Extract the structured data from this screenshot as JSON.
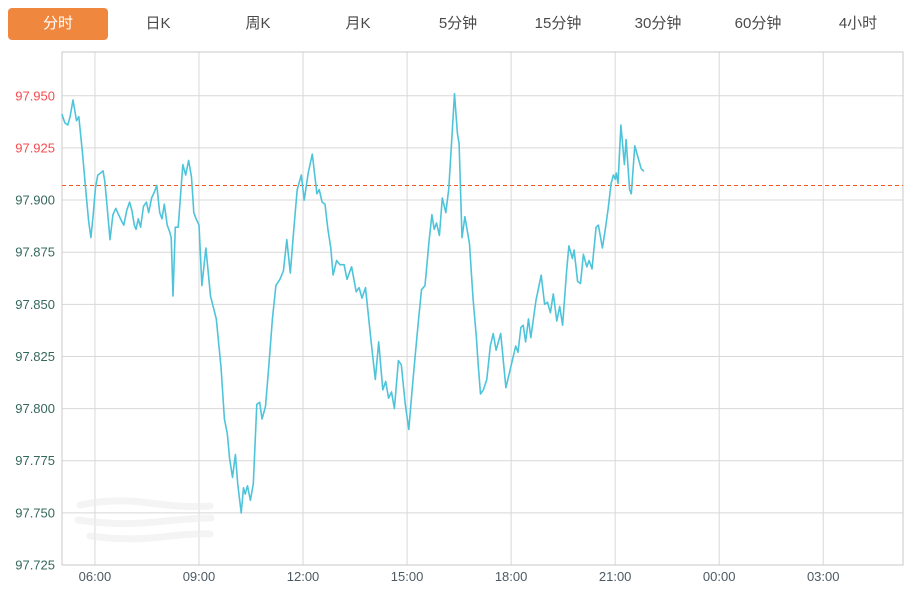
{
  "tab_bar": {
    "items": [
      {
        "key": "minute",
        "label": "分时",
        "active": true
      },
      {
        "key": "daily-k",
        "label": "日K",
        "active": false
      },
      {
        "key": "weekly-k",
        "label": "周K",
        "active": false
      },
      {
        "key": "monthly-k",
        "label": "月K",
        "active": false
      },
      {
        "key": "5min",
        "label": "5分钟",
        "active": false
      },
      {
        "key": "15min",
        "label": "15分钟",
        "active": false
      },
      {
        "key": "30min",
        "label": "30分钟",
        "active": false
      },
      {
        "key": "60min",
        "label": "60分钟",
        "active": false
      },
      {
        "key": "4hour",
        "label": "4小时",
        "active": false
      }
    ]
  },
  "colors": {
    "accent_orange": "#f0873f",
    "line_cyan": "#4ec4da",
    "reference_orange": "#f4581f",
    "tick_red": "#fb4a4d",
    "tick_green": "#35685c",
    "x_label": "#4d5a63",
    "grid": "#d8d8d8",
    "border": "#c9c9c9",
    "tab_text": "#4a4a4a"
  },
  "chart_data": {
    "type": "line",
    "title": "",
    "legend": false,
    "grid": true,
    "x_tick_labels": [
      "06:00",
      "09:00",
      "12:00",
      "15:00",
      "18:00",
      "21:00",
      "00:00",
      "03:00"
    ],
    "x_tick_hours": [
      6,
      9,
      12,
      15,
      18,
      21,
      24,
      27
    ],
    "y_ticks": [
      97.95,
      97.925,
      97.9,
      97.875,
      97.85,
      97.825,
      97.8,
      97.775,
      97.75,
      97.725
    ],
    "ylim": [
      97.725,
      97.971
    ],
    "xlim_hours": [
      5.05,
      29.3
    ],
    "reference_line": {
      "value": 97.907,
      "style": "dashed"
    },
    "series": [
      {
        "name": "分时",
        "points": [
          [
            "05:03",
            97.941
          ],
          [
            "05:08",
            97.937
          ],
          [
            "05:13",
            97.936
          ],
          [
            "05:17",
            97.94
          ],
          [
            "05:22",
            97.948
          ],
          [
            "05:28",
            97.938
          ],
          [
            "05:32",
            97.94
          ],
          [
            "05:38",
            97.924
          ],
          [
            "05:44",
            97.905
          ],
          [
            "05:49",
            97.89
          ],
          [
            "05:53",
            97.882
          ],
          [
            "05:57",
            97.893
          ],
          [
            "06:01",
            97.906
          ],
          [
            "06:05",
            97.912
          ],
          [
            "06:10",
            97.913
          ],
          [
            "06:14",
            97.914
          ],
          [
            "06:17",
            97.909
          ],
          [
            "06:21",
            97.897
          ],
          [
            "06:26",
            97.881
          ],
          [
            "06:31",
            97.893
          ],
          [
            "06:36",
            97.896
          ],
          [
            "06:41",
            97.893
          ],
          [
            "06:46",
            97.89
          ],
          [
            "06:50",
            97.888
          ],
          [
            "06:55",
            97.895
          ],
          [
            "07:00",
            97.899
          ],
          [
            "07:04",
            97.895
          ],
          [
            "07:08",
            97.888
          ],
          [
            "07:11",
            97.886
          ],
          [
            "07:15",
            97.891
          ],
          [
            "07:19",
            97.887
          ],
          [
            "07:24",
            97.897
          ],
          [
            "07:29",
            97.899
          ],
          [
            "07:33",
            97.894
          ],
          [
            "07:38",
            97.901
          ],
          [
            "07:43",
            97.904
          ],
          [
            "07:47",
            97.907
          ],
          [
            "07:52",
            97.894
          ],
          [
            "07:56",
            97.891
          ],
          [
            "08:00",
            97.898
          ],
          [
            "08:05",
            97.888
          ],
          [
            "08:09",
            97.885
          ],
          [
            "08:12",
            97.882
          ],
          [
            "08:15",
            97.854
          ],
          [
            "08:19",
            97.887
          ],
          [
            "08:24",
            97.887
          ],
          [
            "08:28",
            97.902
          ],
          [
            "08:32",
            97.917
          ],
          [
            "08:37",
            97.912
          ],
          [
            "08:42",
            97.919
          ],
          [
            "08:47",
            97.911
          ],
          [
            "08:51",
            97.894
          ],
          [
            "08:55",
            97.891
          ],
          [
            "09:00",
            97.888
          ],
          [
            "09:05",
            97.859
          ],
          [
            "09:12",
            97.877
          ],
          [
            "09:20",
            97.854
          ],
          [
            "09:30",
            97.843
          ],
          [
            "09:38",
            97.82
          ],
          [
            "09:44",
            97.795
          ],
          [
            "09:49",
            97.788
          ],
          [
            "09:53",
            97.776
          ],
          [
            "09:58",
            97.767
          ],
          [
            "10:03",
            97.778
          ],
          [
            "10:07",
            97.764
          ],
          [
            "10:13",
            97.75
          ],
          [
            "10:17",
            97.762
          ],
          [
            "10:20",
            97.759
          ],
          [
            "10:24",
            97.763
          ],
          [
            "10:29",
            97.756
          ],
          [
            "10:34",
            97.764
          ],
          [
            "10:40",
            97.802
          ],
          [
            "10:45",
            97.803
          ],
          [
            "10:49",
            97.795
          ],
          [
            "10:55",
            97.801
          ],
          [
            "11:01",
            97.821
          ],
          [
            "11:07",
            97.843
          ],
          [
            "11:13",
            97.859
          ],
          [
            "11:20",
            97.862
          ],
          [
            "11:26",
            97.866
          ],
          [
            "11:32",
            97.881
          ],
          [
            "11:38",
            97.865
          ],
          [
            "11:44",
            97.886
          ],
          [
            "11:50",
            97.905
          ],
          [
            "11:57",
            97.912
          ],
          [
            "12:02",
            97.9
          ],
          [
            "12:09",
            97.913
          ],
          [
            "12:16",
            97.922
          ],
          [
            "12:24",
            97.903
          ],
          [
            "12:28",
            97.905
          ],
          [
            "12:33",
            97.899
          ],
          [
            "12:38",
            97.898
          ],
          [
            "12:43",
            97.886
          ],
          [
            "12:48",
            97.877
          ],
          [
            "12:52",
            97.864
          ],
          [
            "12:58",
            97.871
          ],
          [
            "13:04",
            97.869
          ],
          [
            "13:11",
            97.869
          ],
          [
            "13:16",
            97.862
          ],
          [
            "13:24",
            97.868
          ],
          [
            "13:32",
            97.856
          ],
          [
            "13:37",
            97.858
          ],
          [
            "13:42",
            97.853
          ],
          [
            "13:48",
            97.858
          ],
          [
            "13:57",
            97.834
          ],
          [
            "14:05",
            97.814
          ],
          [
            "14:11",
            97.832
          ],
          [
            "14:18",
            97.809
          ],
          [
            "14:23",
            97.813
          ],
          [
            "14:28",
            97.805
          ],
          [
            "14:33",
            97.808
          ],
          [
            "14:38",
            97.8
          ],
          [
            "14:45",
            97.823
          ],
          [
            "14:50",
            97.821
          ],
          [
            "14:57",
            97.802
          ],
          [
            "15:03",
            97.79
          ],
          [
            "15:09",
            97.81
          ],
          [
            "15:15",
            97.828
          ],
          [
            "15:20",
            97.843
          ],
          [
            "15:25",
            97.857
          ],
          [
            "15:31",
            97.859
          ],
          [
            "15:38",
            97.88
          ],
          [
            "15:43",
            97.893
          ],
          [
            "15:47",
            97.886
          ],
          [
            "15:51",
            97.889
          ],
          [
            "15:56",
            97.883
          ],
          [
            "16:01",
            97.901
          ],
          [
            "16:07",
            97.894
          ],
          [
            "16:12",
            97.905
          ],
          [
            "16:16",
            97.923
          ],
          [
            "16:22",
            97.951
          ],
          [
            "16:27",
            97.932
          ],
          [
            "16:30",
            97.927
          ],
          [
            "16:35",
            97.882
          ],
          [
            "16:40",
            97.892
          ],
          [
            "16:48",
            97.879
          ],
          [
            "16:54",
            97.853
          ],
          [
            "17:00",
            97.834
          ],
          [
            "17:03",
            97.821
          ],
          [
            "17:07",
            97.807
          ],
          [
            "17:12",
            97.809
          ],
          [
            "17:18",
            97.814
          ],
          [
            "17:24",
            97.83
          ],
          [
            "17:29",
            97.836
          ],
          [
            "17:34",
            97.828
          ],
          [
            "17:42",
            97.836
          ],
          [
            "17:51",
            97.81
          ],
          [
            "18:02",
            97.823
          ],
          [
            "18:08",
            97.83
          ],
          [
            "18:12",
            97.827
          ],
          [
            "18:17",
            97.839
          ],
          [
            "18:21",
            97.84
          ],
          [
            "18:25",
            97.832
          ],
          [
            "18:30",
            97.843
          ],
          [
            "18:34",
            97.834
          ],
          [
            "18:43",
            97.852
          ],
          [
            "18:52",
            97.864
          ],
          [
            "18:58",
            97.85
          ],
          [
            "19:03",
            97.851
          ],
          [
            "19:08",
            97.846
          ],
          [
            "19:13",
            97.855
          ],
          [
            "19:19",
            97.842
          ],
          [
            "19:24",
            97.849
          ],
          [
            "19:29",
            97.84
          ],
          [
            "19:36",
            97.866
          ],
          [
            "19:40",
            97.878
          ],
          [
            "19:46",
            97.872
          ],
          [
            "19:49",
            97.876
          ],
          [
            "19:55",
            97.861
          ],
          [
            "20:00",
            97.86
          ],
          [
            "20:05",
            97.874
          ],
          [
            "20:11",
            97.868
          ],
          [
            "20:15",
            97.871
          ],
          [
            "20:20",
            97.867
          ],
          [
            "20:27",
            97.887
          ],
          [
            "20:31",
            97.888
          ],
          [
            "20:38",
            97.877
          ],
          [
            "20:43",
            97.886
          ],
          [
            "20:48",
            97.896
          ],
          [
            "20:53",
            97.908
          ],
          [
            "20:57",
            97.912
          ],
          [
            "21:00",
            97.91
          ],
          [
            "21:02",
            97.913
          ],
          [
            "21:05",
            97.908
          ],
          [
            "21:10",
            97.936
          ],
          [
            "21:16",
            97.917
          ],
          [
            "21:19",
            97.929
          ],
          [
            "21:25",
            97.905
          ],
          [
            "21:28",
            97.903
          ],
          [
            "21:34",
            97.926
          ],
          [
            "21:40",
            97.92
          ],
          [
            "21:45",
            97.915
          ],
          [
            "21:49",
            97.914
          ]
        ]
      }
    ]
  }
}
